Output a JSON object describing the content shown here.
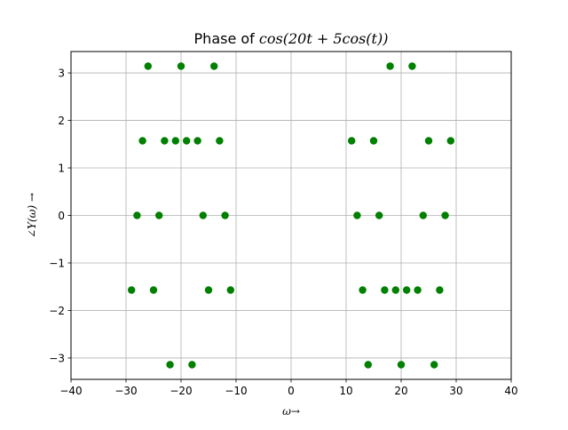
{
  "chart_data": {
    "type": "scatter",
    "title_prefix": "Phase of ",
    "title_math": "cos(20t + 5cos(t))",
    "xlabel": "ω→",
    "ylabel": "∠Y(ω) →",
    "xlim": [
      -40,
      40
    ],
    "ylim": [
      -3.45,
      3.45
    ],
    "xticks": [
      -40,
      -30,
      -20,
      -10,
      0,
      10,
      20,
      30,
      40
    ],
    "xtick_labels": [
      "−40",
      "−30",
      "−20",
      "−10",
      "0",
      "10",
      "20",
      "30",
      "40"
    ],
    "yticks": [
      -3,
      -2,
      -1,
      0,
      1,
      2,
      3
    ],
    "ytick_labels": [
      "−3",
      "−2",
      "−1",
      "0",
      "1",
      "2",
      "3"
    ],
    "grid": true,
    "marker_color": "#008000",
    "points": [
      {
        "x": -26,
        "y": 3.14159
      },
      {
        "x": -20,
        "y": 3.14159
      },
      {
        "x": -14,
        "y": 3.14159
      },
      {
        "x": 18,
        "y": 3.14159
      },
      {
        "x": 22,
        "y": 3.14159
      },
      {
        "x": -27,
        "y": 1.5708
      },
      {
        "x": -23,
        "y": 1.5708
      },
      {
        "x": -21,
        "y": 1.5708
      },
      {
        "x": -19,
        "y": 1.5708
      },
      {
        "x": -17,
        "y": 1.5708
      },
      {
        "x": -13,
        "y": 1.5708
      },
      {
        "x": 11,
        "y": 1.5708
      },
      {
        "x": 15,
        "y": 1.5708
      },
      {
        "x": 25,
        "y": 1.5708
      },
      {
        "x": 29,
        "y": 1.5708
      },
      {
        "x": -28,
        "y": 0
      },
      {
        "x": -24,
        "y": 0
      },
      {
        "x": -16,
        "y": 0
      },
      {
        "x": -12,
        "y": 0
      },
      {
        "x": 12,
        "y": 0
      },
      {
        "x": 16,
        "y": 0
      },
      {
        "x": 24,
        "y": 0
      },
      {
        "x": 28,
        "y": 0
      },
      {
        "x": -29,
        "y": -1.5708
      },
      {
        "x": -25,
        "y": -1.5708
      },
      {
        "x": -15,
        "y": -1.5708
      },
      {
        "x": -11,
        "y": -1.5708
      },
      {
        "x": 13,
        "y": -1.5708
      },
      {
        "x": 17,
        "y": -1.5708
      },
      {
        "x": 19,
        "y": -1.5708
      },
      {
        "x": 21,
        "y": -1.5708
      },
      {
        "x": 23,
        "y": -1.5708
      },
      {
        "x": 27,
        "y": -1.5708
      },
      {
        "x": -22,
        "y": -3.14159
      },
      {
        "x": -18,
        "y": -3.14159
      },
      {
        "x": 14,
        "y": -3.14159
      },
      {
        "x": 20,
        "y": -3.14159
      },
      {
        "x": 26,
        "y": -3.14159
      }
    ]
  }
}
